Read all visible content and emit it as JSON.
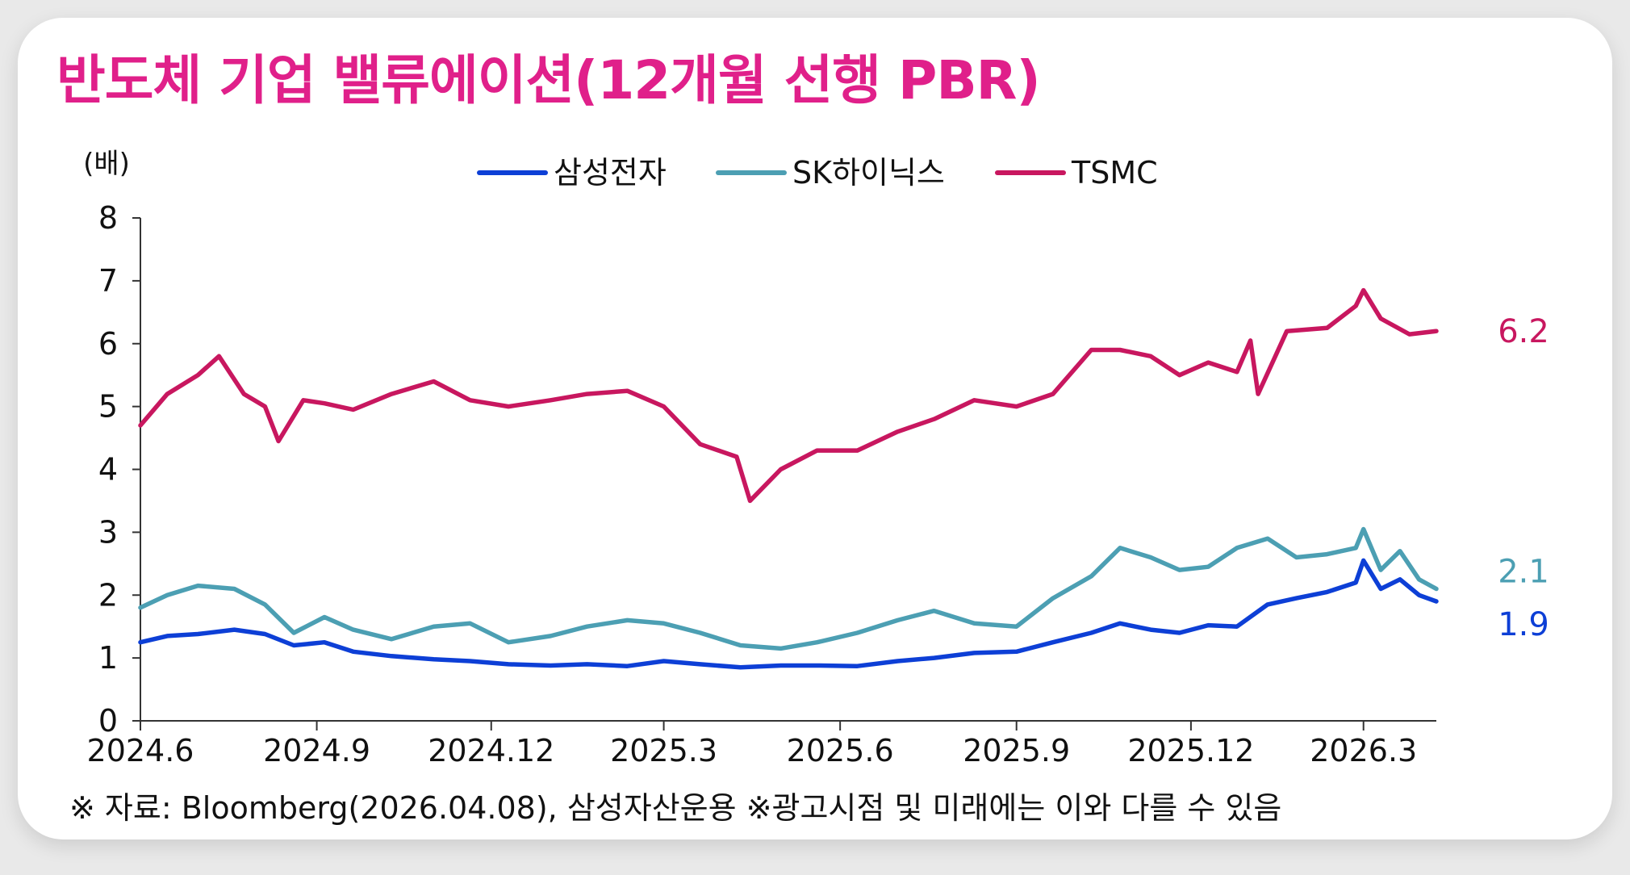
{
  "title": "반도체 기업 밸류에이션(12개월 선행 PBR)",
  "footnote": "※ 자료: Bloomberg(2026.04.08), 삼성자산운용 ※광고시점 및 미래에는 이와 다를 수 있음",
  "colors": {
    "samsung": "#0d3fd6",
    "skhynix": "#4c9fb3",
    "tsmc": "#c8175f",
    "title": "#e0208a"
  },
  "chart_data": {
    "type": "line",
    "ylabel": "(배)",
    "ylim": [
      0,
      8
    ],
    "yticks": [
      "0",
      "1",
      "2",
      "3",
      "4",
      "5",
      "6",
      "7",
      "8"
    ],
    "xlim": [
      "2024-06",
      "2026-04-08"
    ],
    "xticks": [
      "2024.6",
      "2024.9",
      "2024.12",
      "2025.3",
      "2025.6",
      "2025.9",
      "2025.12",
      "2026.3"
    ],
    "legend_position": "top-center",
    "series": [
      {
        "name": "삼성전자",
        "key": "samsung",
        "end_label": "1.9",
        "x": [
          "2024-06-01",
          "2024-06-15",
          "2024-07-01",
          "2024-07-20",
          "2024-08-05",
          "2024-08-20",
          "2024-09-05",
          "2024-09-20",
          "2024-10-10",
          "2024-11-01",
          "2024-11-20",
          "2024-12-10",
          "2025-01-01",
          "2025-01-20",
          "2025-02-10",
          "2025-03-01",
          "2025-03-20",
          "2025-04-10",
          "2025-05-01",
          "2025-05-20",
          "2025-06-10",
          "2025-07-01",
          "2025-07-20",
          "2025-08-10",
          "2025-09-01",
          "2025-09-20",
          "2025-10-10",
          "2025-10-25",
          "2025-11-10",
          "2025-11-25",
          "2025-12-10",
          "2025-12-25",
          "2026-01-10",
          "2026-01-25",
          "2026-02-10",
          "2026-02-25",
          "2026-03-01",
          "2026-03-10",
          "2026-03-20",
          "2026-03-30",
          "2026-04-08"
        ],
        "y": [
          1.25,
          1.35,
          1.38,
          1.45,
          1.38,
          1.2,
          1.25,
          1.1,
          1.03,
          0.98,
          0.95,
          0.9,
          0.88,
          0.9,
          0.87,
          0.95,
          0.9,
          0.85,
          0.88,
          0.88,
          0.87,
          0.95,
          1.0,
          1.08,
          1.1,
          1.25,
          1.4,
          1.55,
          1.45,
          1.4,
          1.52,
          1.5,
          1.85,
          1.95,
          2.05,
          2.2,
          2.55,
          2.1,
          2.25,
          2.0,
          1.9
        ]
      },
      {
        "name": "SK하이닉스",
        "key": "skhynix",
        "end_label": "2.1",
        "x": [
          "2024-06-01",
          "2024-06-15",
          "2024-07-01",
          "2024-07-20",
          "2024-08-05",
          "2024-08-20",
          "2024-09-05",
          "2024-09-20",
          "2024-10-10",
          "2024-11-01",
          "2024-11-20",
          "2024-12-10",
          "2025-01-01",
          "2025-01-20",
          "2025-02-10",
          "2025-03-01",
          "2025-03-20",
          "2025-04-10",
          "2025-05-01",
          "2025-05-20",
          "2025-06-10",
          "2025-07-01",
          "2025-07-20",
          "2025-08-10",
          "2025-09-01",
          "2025-09-20",
          "2025-10-10",
          "2025-10-25",
          "2025-11-10",
          "2025-11-25",
          "2025-12-10",
          "2025-12-25",
          "2026-01-10",
          "2026-01-25",
          "2026-02-10",
          "2026-02-25",
          "2026-03-01",
          "2026-03-10",
          "2026-03-20",
          "2026-03-30",
          "2026-04-08"
        ],
        "y": [
          1.8,
          2.0,
          2.15,
          2.1,
          1.85,
          1.4,
          1.65,
          1.45,
          1.3,
          1.5,
          1.55,
          1.25,
          1.35,
          1.5,
          1.6,
          1.55,
          1.4,
          1.2,
          1.15,
          1.25,
          1.4,
          1.6,
          1.75,
          1.55,
          1.5,
          1.95,
          2.3,
          2.75,
          2.6,
          2.4,
          2.45,
          2.75,
          2.9,
          2.6,
          2.65,
          2.75,
          3.05,
          2.4,
          2.7,
          2.25,
          2.1
        ]
      },
      {
        "name": "TSMC",
        "key": "tsmc",
        "end_label": "6.2",
        "x": [
          "2024-06-01",
          "2024-06-15",
          "2024-07-01",
          "2024-07-12",
          "2024-07-25",
          "2024-08-05",
          "2024-08-12",
          "2024-08-25",
          "2024-09-05",
          "2024-09-20",
          "2024-10-10",
          "2024-11-01",
          "2024-11-20",
          "2024-12-10",
          "2025-01-01",
          "2025-01-20",
          "2025-02-10",
          "2025-03-01",
          "2025-03-20",
          "2025-04-08",
          "2025-04-15",
          "2025-05-01",
          "2025-05-20",
          "2025-06-10",
          "2025-07-01",
          "2025-07-20",
          "2025-08-10",
          "2025-09-01",
          "2025-09-20",
          "2025-10-10",
          "2025-10-25",
          "2025-11-10",
          "2025-11-25",
          "2025-12-10",
          "2025-12-25",
          "2026-01-01",
          "2026-01-05",
          "2026-01-20",
          "2026-02-10",
          "2026-02-25",
          "2026-03-01",
          "2026-03-10",
          "2026-03-25",
          "2026-04-08"
        ],
        "y": [
          4.7,
          5.2,
          5.5,
          5.8,
          5.2,
          5.0,
          4.45,
          5.1,
          5.05,
          4.95,
          5.2,
          5.4,
          5.1,
          5.0,
          5.1,
          5.2,
          5.25,
          5.0,
          4.4,
          4.2,
          3.5,
          4.0,
          4.3,
          4.3,
          4.6,
          4.8,
          5.1,
          5.0,
          5.2,
          5.9,
          5.9,
          5.8,
          5.5,
          5.7,
          5.55,
          6.05,
          5.2,
          6.2,
          6.25,
          6.6,
          6.85,
          6.4,
          6.15,
          6.2
        ]
      }
    ]
  }
}
